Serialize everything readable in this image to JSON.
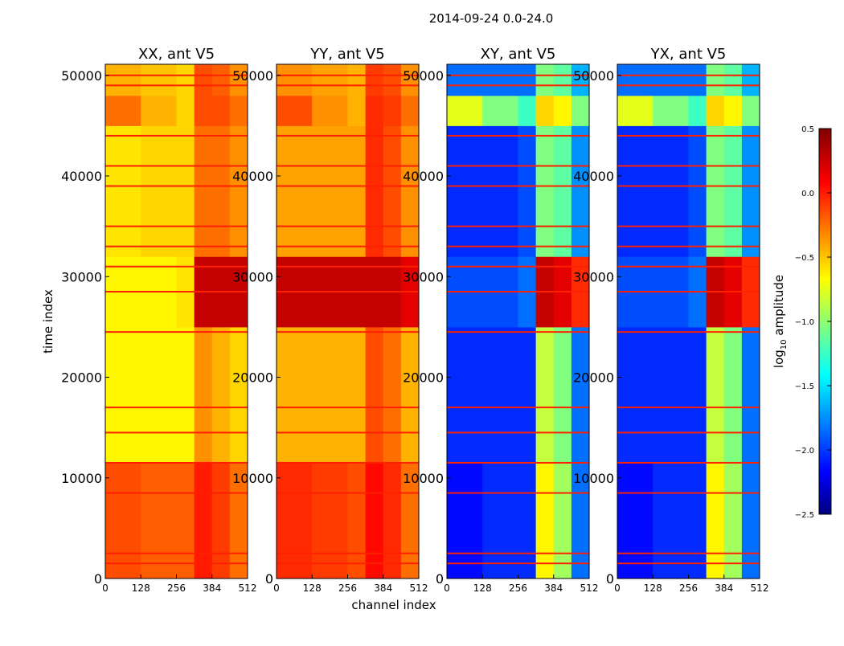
{
  "chart_data": {
    "type": "heatmap",
    "title": "2014-09-24 0.0-24.0",
    "xlabel": "channel index",
    "ylabel": "time index",
    "xlim": [
      0,
      512
    ],
    "ylim": [
      0,
      51100
    ],
    "xticks": [
      "0",
      "128",
      "256",
      "384",
      "512"
    ],
    "xtick_values": [
      0,
      128,
      256,
      384,
      512
    ],
    "yticks": [
      "0",
      "10000",
      "20000",
      "30000",
      "40000",
      "50000"
    ],
    "ytick_values": [
      0,
      10000,
      20000,
      30000,
      40000,
      50000
    ],
    "colormap": "jet",
    "colorbar": {
      "label_main": "log",
      "label_sub": "10",
      "label_rest": " amplitude",
      "range": [
        -2.5,
        0.5
      ],
      "ticks": [
        "0.5",
        "0.0",
        "−0.5",
        "−1.0",
        "−1.5",
        "−2.0",
        "−2.5"
      ],
      "tick_values": [
        0.5,
        0.0,
        -0.5,
        -1.0,
        -1.5,
        -2.0,
        -2.5
      ]
    },
    "channel_edges": [
      0,
      128,
      256,
      320,
      384,
      448,
      512
    ],
    "time_edges": [
      0,
      11500,
      25000,
      32000,
      45000,
      48000,
      51100
    ],
    "flagged_times": [
      1500,
      2500,
      8500,
      11500,
      14500,
      17000,
      24500,
      28500,
      31000,
      33000,
      35000,
      39000,
      41000,
      44000,
      49000,
      50000
    ],
    "panels": [
      {
        "title": "XX, ant V5",
        "values": [
          [
            -0.1,
            -0.15,
            -0.15,
            0.05,
            -0.05,
            -0.2
          ],
          [
            -0.6,
            -0.6,
            -0.6,
            -0.3,
            -0.4,
            -0.5
          ],
          [
            -0.6,
            -0.6,
            -0.55,
            0.3,
            0.3,
            0.3
          ],
          [
            -0.55,
            -0.5,
            -0.5,
            -0.2,
            -0.2,
            -0.3
          ],
          [
            -0.2,
            -0.4,
            -0.5,
            -0.1,
            -0.1,
            -0.2
          ],
          [
            -0.4,
            -0.45,
            -0.5,
            -0.1,
            -0.15,
            -0.3
          ]
        ]
      },
      {
        "title": "YY, ant V5",
        "values": [
          [
            0.0,
            -0.05,
            -0.1,
            0.1,
            0.0,
            -0.2
          ],
          [
            -0.4,
            -0.4,
            -0.4,
            -0.1,
            -0.2,
            -0.4
          ],
          [
            0.3,
            0.3,
            0.3,
            0.3,
            0.3,
            0.2
          ],
          [
            -0.35,
            -0.35,
            -0.35,
            0.0,
            -0.1,
            -0.3
          ],
          [
            -0.1,
            -0.3,
            -0.4,
            0.0,
            -0.05,
            -0.2
          ],
          [
            -0.3,
            -0.35,
            -0.4,
            -0.05,
            -0.1,
            -0.3
          ]
        ]
      },
      {
        "title": "XY, ant V5",
        "values": [
          [
            -2.1,
            -2.0,
            -2.0,
            -0.6,
            -0.9,
            -1.8
          ],
          [
            -2.0,
            -2.0,
            -2.0,
            -0.8,
            -1.0,
            -1.8
          ],
          [
            -1.9,
            -1.9,
            -1.8,
            0.3,
            0.2,
            0.0
          ],
          [
            -2.0,
            -2.0,
            -1.9,
            -1.0,
            -1.1,
            -1.7
          ],
          [
            -0.7,
            -1.0,
            -1.2,
            -0.5,
            -0.6,
            -1.0
          ],
          [
            -1.8,
            -1.8,
            -1.8,
            -1.0,
            -1.1,
            -1.6
          ]
        ]
      },
      {
        "title": "YX, ant V5",
        "values": [
          [
            -2.1,
            -2.0,
            -2.0,
            -0.6,
            -0.9,
            -1.8
          ],
          [
            -2.0,
            -2.0,
            -2.0,
            -0.8,
            -1.0,
            -1.8
          ],
          [
            -1.9,
            -1.9,
            -1.8,
            0.3,
            0.2,
            0.0
          ],
          [
            -2.0,
            -2.0,
            -1.9,
            -1.0,
            -1.1,
            -1.7
          ],
          [
            -0.7,
            -1.0,
            -1.2,
            -0.5,
            -0.6,
            -1.0
          ],
          [
            -1.8,
            -1.8,
            -1.8,
            -1.0,
            -1.1,
            -1.6
          ]
        ]
      }
    ]
  }
}
